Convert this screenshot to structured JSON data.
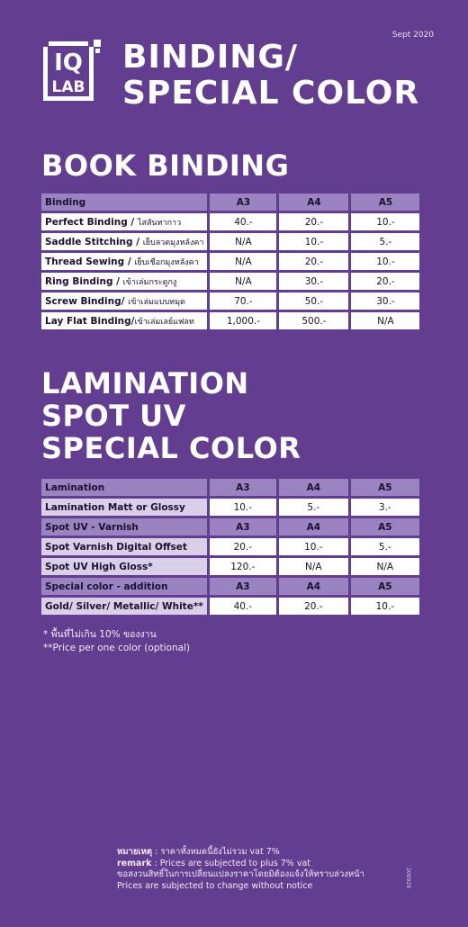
{
  "header": {
    "date": "Sept 2020",
    "logo_text_top": "IQ",
    "logo_text_bottom": "LAB",
    "title_line1": "BINDING/",
    "title_line2": "SPECIAL COLOR"
  },
  "binding": {
    "section_title": "BOOK BINDING",
    "columns": [
      "Binding",
      "A3",
      "A4",
      "A5"
    ],
    "rows": [
      {
        "en": "Perfect Binding / ",
        "th": "ไสสันทากาว",
        "a3": "40.-",
        "a4": "20.-",
        "a5": "10.-"
      },
      {
        "en": "Saddle Stitching / ",
        "th": "เย็บลวดมุงหลังคา",
        "a3": "N/A",
        "a4": "10.-",
        "a5": "5.-"
      },
      {
        "en": "Thread Sewing / ",
        "th": "เย็บเชือกมุงหลังคา",
        "a3": "N/A",
        "a4": "20.-",
        "a5": "10.-"
      },
      {
        "en": "Ring Binding / ",
        "th": "เข้าเล่มกระดูกงู",
        "a3": "N/A",
        "a4": "30.-",
        "a5": "20.-"
      },
      {
        "en": "Screw Binding/ ",
        "th": "เข้าเล่มแบบหมุด",
        "a3": "70.-",
        "a4": "50.-",
        "a5": "30.-"
      },
      {
        "en": "Lay Flat Binding/",
        "th": "เข้าเล่มเลย์แฟลท",
        "a3": "1,000.-",
        "a4": "500.-",
        "a5": "N/A"
      }
    ]
  },
  "lamination": {
    "title_line1": "LAMINATION",
    "title_line2": "SPOT UV",
    "title_line3": "SPECIAL COLOR",
    "groups": [
      {
        "header": [
          "Lamination",
          "A3",
          "A4",
          "A5"
        ],
        "rows": [
          {
            "label": "Lamination Matt or Glossy",
            "a3": "10.-",
            "a4": "5.-",
            "a5": "3.-"
          }
        ]
      },
      {
        "header": [
          "Spot UV - Varnish",
          "A3",
          "A4",
          "A5"
        ],
        "rows": [
          {
            "label": "Spot Varnish Digital Offset",
            "a3": "20.-",
            "a4": "10.-",
            "a5": "5.-"
          },
          {
            "label": "Spot UV High Gloss*",
            "a3": "120.-",
            "a4": "N/A",
            "a5": "N/A"
          }
        ]
      },
      {
        "header": [
          "Special color - addition",
          "A3",
          "A4",
          "A5"
        ],
        "rows": [
          {
            "label": "Gold/ Silver/ Metallic/ White**",
            "a3": "40.-",
            "a4": "20.-",
            "a5": "10.-"
          }
        ]
      }
    ]
  },
  "notes": {
    "note1": "* พื้นที่ไม่เกิน 10% ของงาน",
    "note2": "**Price per one color (optional)"
  },
  "footer": {
    "label_th": "หมายเหตุ",
    "line1": "  : ราคาทั้งหมดนี้ยังไม่รวม vat 7%",
    "label_en": "remark",
    "line2": "      : Prices are subjected to plus 7% vat",
    "line3": "ขอสงวนสิทธิ์ในการเปลี่ยนแปลงราคาโดยมิต้องแจ้งให้ทราบล่วงหน้า",
    "line4": "Prices are subjected to change without notice",
    "code": "200929"
  },
  "colors": {
    "background": "#633d8f",
    "header_cell": "#9a83c0",
    "sub_cell": "#d9cfe9"
  }
}
